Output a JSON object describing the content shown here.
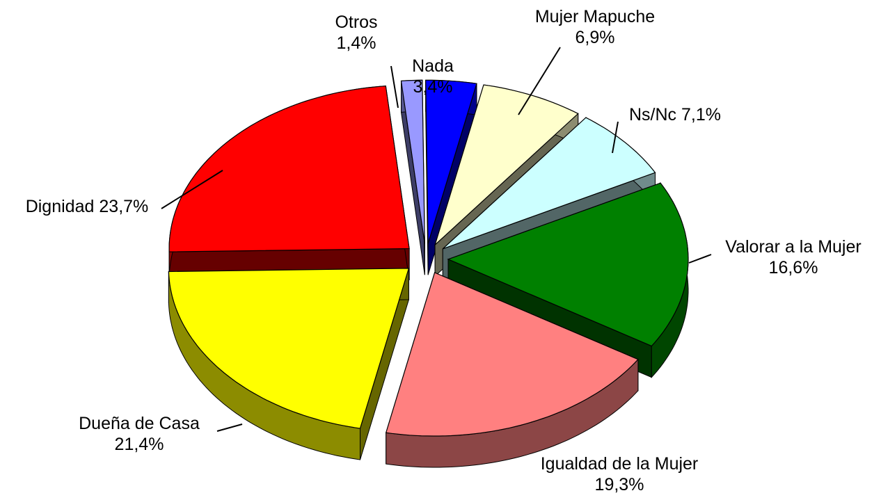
{
  "chart_data": {
    "type": "pie3d",
    "categories": [
      "Nada",
      "Mujer Mapuche",
      "Ns/Nc",
      "Valorar a la Mujer",
      "Igualdad de la Mujer",
      "Dueña de Casa",
      "Dignidad",
      "Otros"
    ],
    "values": [
      3.4,
      6.9,
      7.1,
      16.6,
      19.3,
      21.4,
      23.7,
      1.4
    ],
    "value_labels": [
      "3,4%",
      "6,9%",
      "7,1%",
      "16,6%",
      "19,3%",
      "21,4%",
      "23,7%",
      "1,4%"
    ],
    "colors": [
      "#0000ff",
      "#ffffcc",
      "#ccffff",
      "#008000",
      "#ff8080",
      "#ffff00",
      "#ff0000",
      "#9999ff"
    ]
  }
}
